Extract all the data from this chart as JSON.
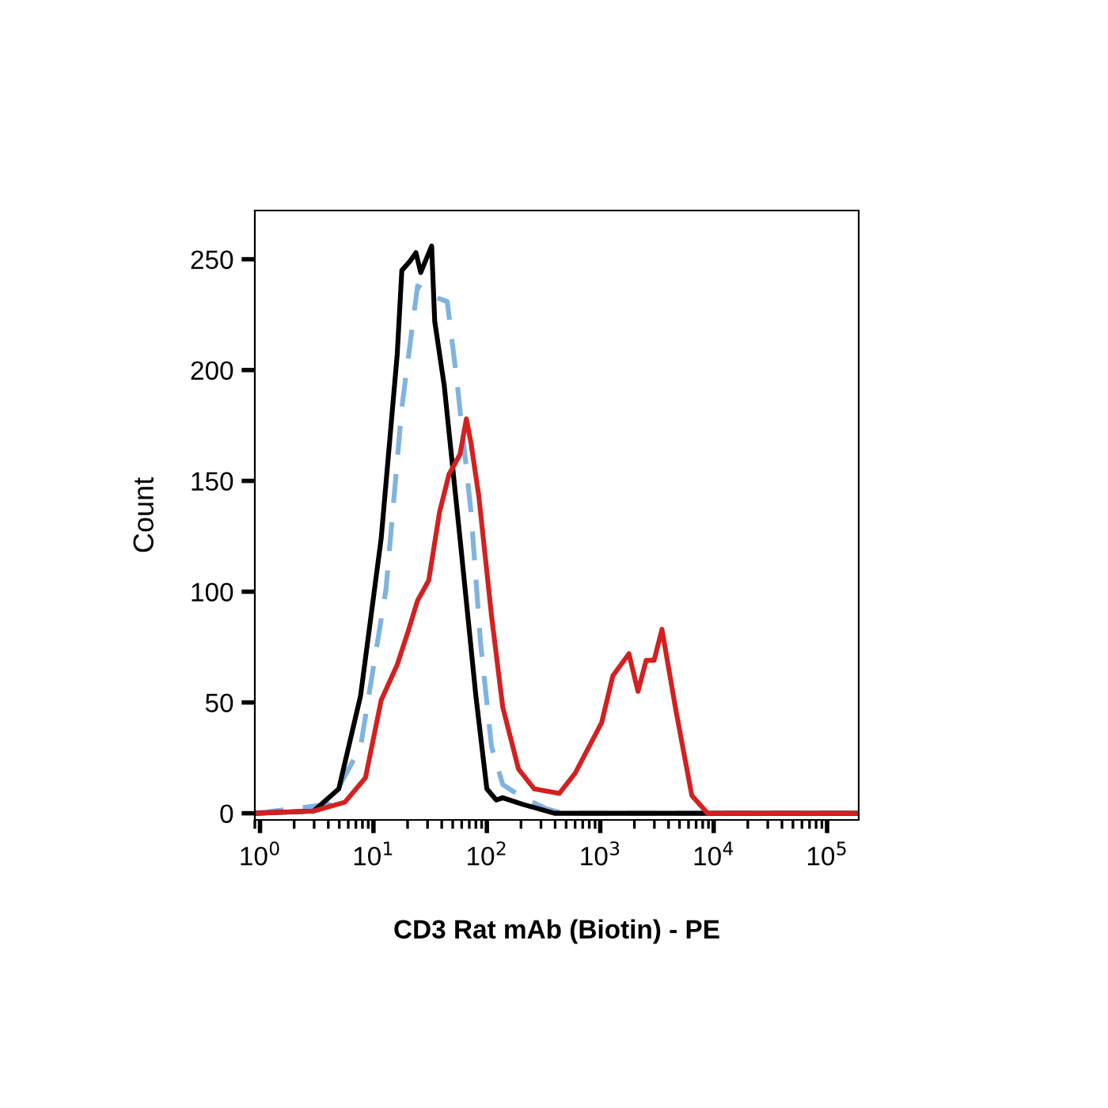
{
  "chart_data": {
    "type": "line",
    "xlabel": "CD3 Rat mAb (Biotin) - PE",
    "ylabel": "Count",
    "log": "x",
    "xlim": [
      0.9,
      190000
    ],
    "ylim": [
      -3,
      272
    ],
    "xticks": [
      {
        "value": 1,
        "label": "10$^{0}$"
      },
      {
        "value": 10,
        "label": "10$^{1}$"
      },
      {
        "value": 100,
        "label": "10$^{2}$"
      },
      {
        "value": 1000,
        "label": "10$^{3}$"
      },
      {
        "value": 10000,
        "label": "10$^{4}$"
      },
      {
        "value": 100000,
        "label": "10$^{5}$"
      }
    ],
    "yticks": [
      0,
      50,
      100,
      150,
      200,
      250
    ],
    "series": [
      {
        "color": "#7fb3e0",
        "line_style": "dashed",
        "x": [
          0.9,
          4.1,
          7.7,
          12.9,
          17.8,
          24.5,
          34,
          44.7,
          54.5,
          72.5,
          88,
          110,
          138,
          208,
          336,
          464,
          190000
        ],
        "values": [
          0,
          4,
          30,
          101,
          183,
          238,
          233,
          231,
          195,
          136,
          77,
          30,
          13,
          7,
          2,
          0,
          0
        ]
      },
      {
        "color": "#000000",
        "line_style": "solid",
        "x": [
          0.9,
          2.97,
          4.95,
          7.7,
          11.7,
          16.2,
          17.8,
          20.9,
          23.7,
          26.1,
          32.6,
          34.7,
          42.1,
          58,
          80,
          100,
          121,
          138,
          208,
          395,
          190000
        ],
        "values": [
          0,
          1,
          11,
          53,
          124,
          207,
          245,
          249,
          253,
          244,
          256,
          222,
          193,
          124,
          53,
          11,
          6,
          7,
          4,
          0,
          0
        ]
      },
      {
        "color": "#d42020",
        "line_style": "solid",
        "x": [
          0.9,
          2.97,
          5.6,
          8.5,
          11.7,
          16.2,
          20.2,
          24.5,
          30.7,
          38.3,
          46.4,
          58,
          66,
          72.5,
          85,
          110,
          138,
          190,
          262,
          436,
          600,
          1030,
          1290,
          1790,
          2150,
          2540,
          2980,
          3500,
          4660,
          6420,
          8850,
          190000
        ],
        "values": [
          0,
          1,
          5,
          16,
          51,
          67,
          82,
          96,
          105,
          136,
          153,
          162,
          178,
          167,
          143,
          89,
          48,
          20,
          11,
          9,
          18,
          41,
          62,
          72,
          55,
          69,
          69,
          83,
          46,
          8,
          0,
          0
        ]
      }
    ]
  }
}
